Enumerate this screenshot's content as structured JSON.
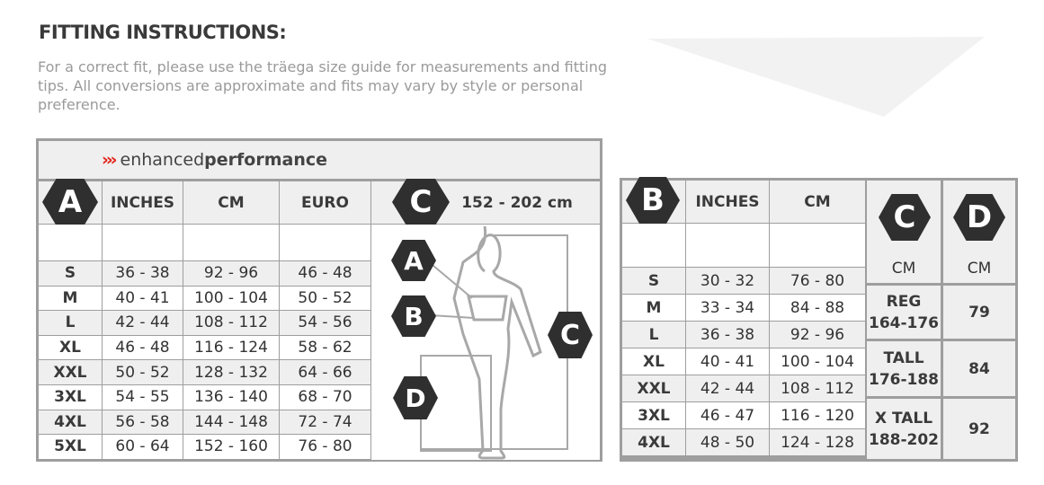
{
  "title": "FITTING INSTRUCTIONS:",
  "intro": "For a correct fit, please use the träega size guide for measurements and fitting tips. All conversions are approximate and fits may vary by style or personal preference.",
  "colors": {
    "accent": "#e2231a",
    "hex_badge": "#2f2f2f",
    "border": "#9e9e9e",
    "cell_gray": "#efefef"
  },
  "top_table": {
    "banner_arrows": "›››",
    "banner_light": "enhanced",
    "banner_bold": "performance",
    "badge": "A",
    "headers": [
      "INCHES",
      "CM",
      "EURO"
    ],
    "height_badge": "C",
    "height_range": "152 - 202 cm",
    "figure_badges": [
      "A",
      "B",
      "C",
      "D"
    ],
    "rows": [
      [
        "S",
        "36 - 38",
        "92 - 96",
        "46 - 48"
      ],
      [
        "M",
        "40 - 41",
        "100 - 104",
        "50 - 52"
      ],
      [
        "L",
        "42 - 44",
        "108 - 112",
        "54 - 56"
      ],
      [
        "XL",
        "46 - 48",
        "116 - 124",
        "58 - 62"
      ],
      [
        "XXL",
        "50 - 52",
        "128 - 132",
        "64 - 66"
      ],
      [
        "3XL",
        "54 - 55",
        "136 - 140",
        "68 - 70"
      ],
      [
        "4XL",
        "56 - 58",
        "144 - 148",
        "72 - 74"
      ],
      [
        "5XL",
        "60 - 64",
        "152 - 160",
        "76 - 80"
      ]
    ]
  },
  "bottom_table": {
    "badge": "B",
    "headers": [
      "INCHES",
      "CM"
    ],
    "rows": [
      [
        "S",
        "30 - 32",
        "76 - 80"
      ],
      [
        "M",
        "33 - 34",
        "84 - 88"
      ],
      [
        "L",
        "36 - 38",
        "92 - 96"
      ],
      [
        "XL",
        "40 - 41",
        "100 - 104"
      ],
      [
        "XXL",
        "42 - 44",
        "108 - 112"
      ],
      [
        "3XL",
        "46 - 47",
        "116 - 120"
      ],
      [
        "4XL",
        "48 - 50",
        "124 - 128"
      ]
    ],
    "c_badge": "C",
    "d_badge": "D",
    "c_unit": "CM",
    "d_unit": "CM",
    "lengths": [
      {
        "label": "REG",
        "range": "164-176",
        "value": "79"
      },
      {
        "label": "TALL",
        "range": "176-188",
        "value": "84"
      },
      {
        "label": "X TALL",
        "range": "188-202",
        "value": "92"
      }
    ]
  }
}
